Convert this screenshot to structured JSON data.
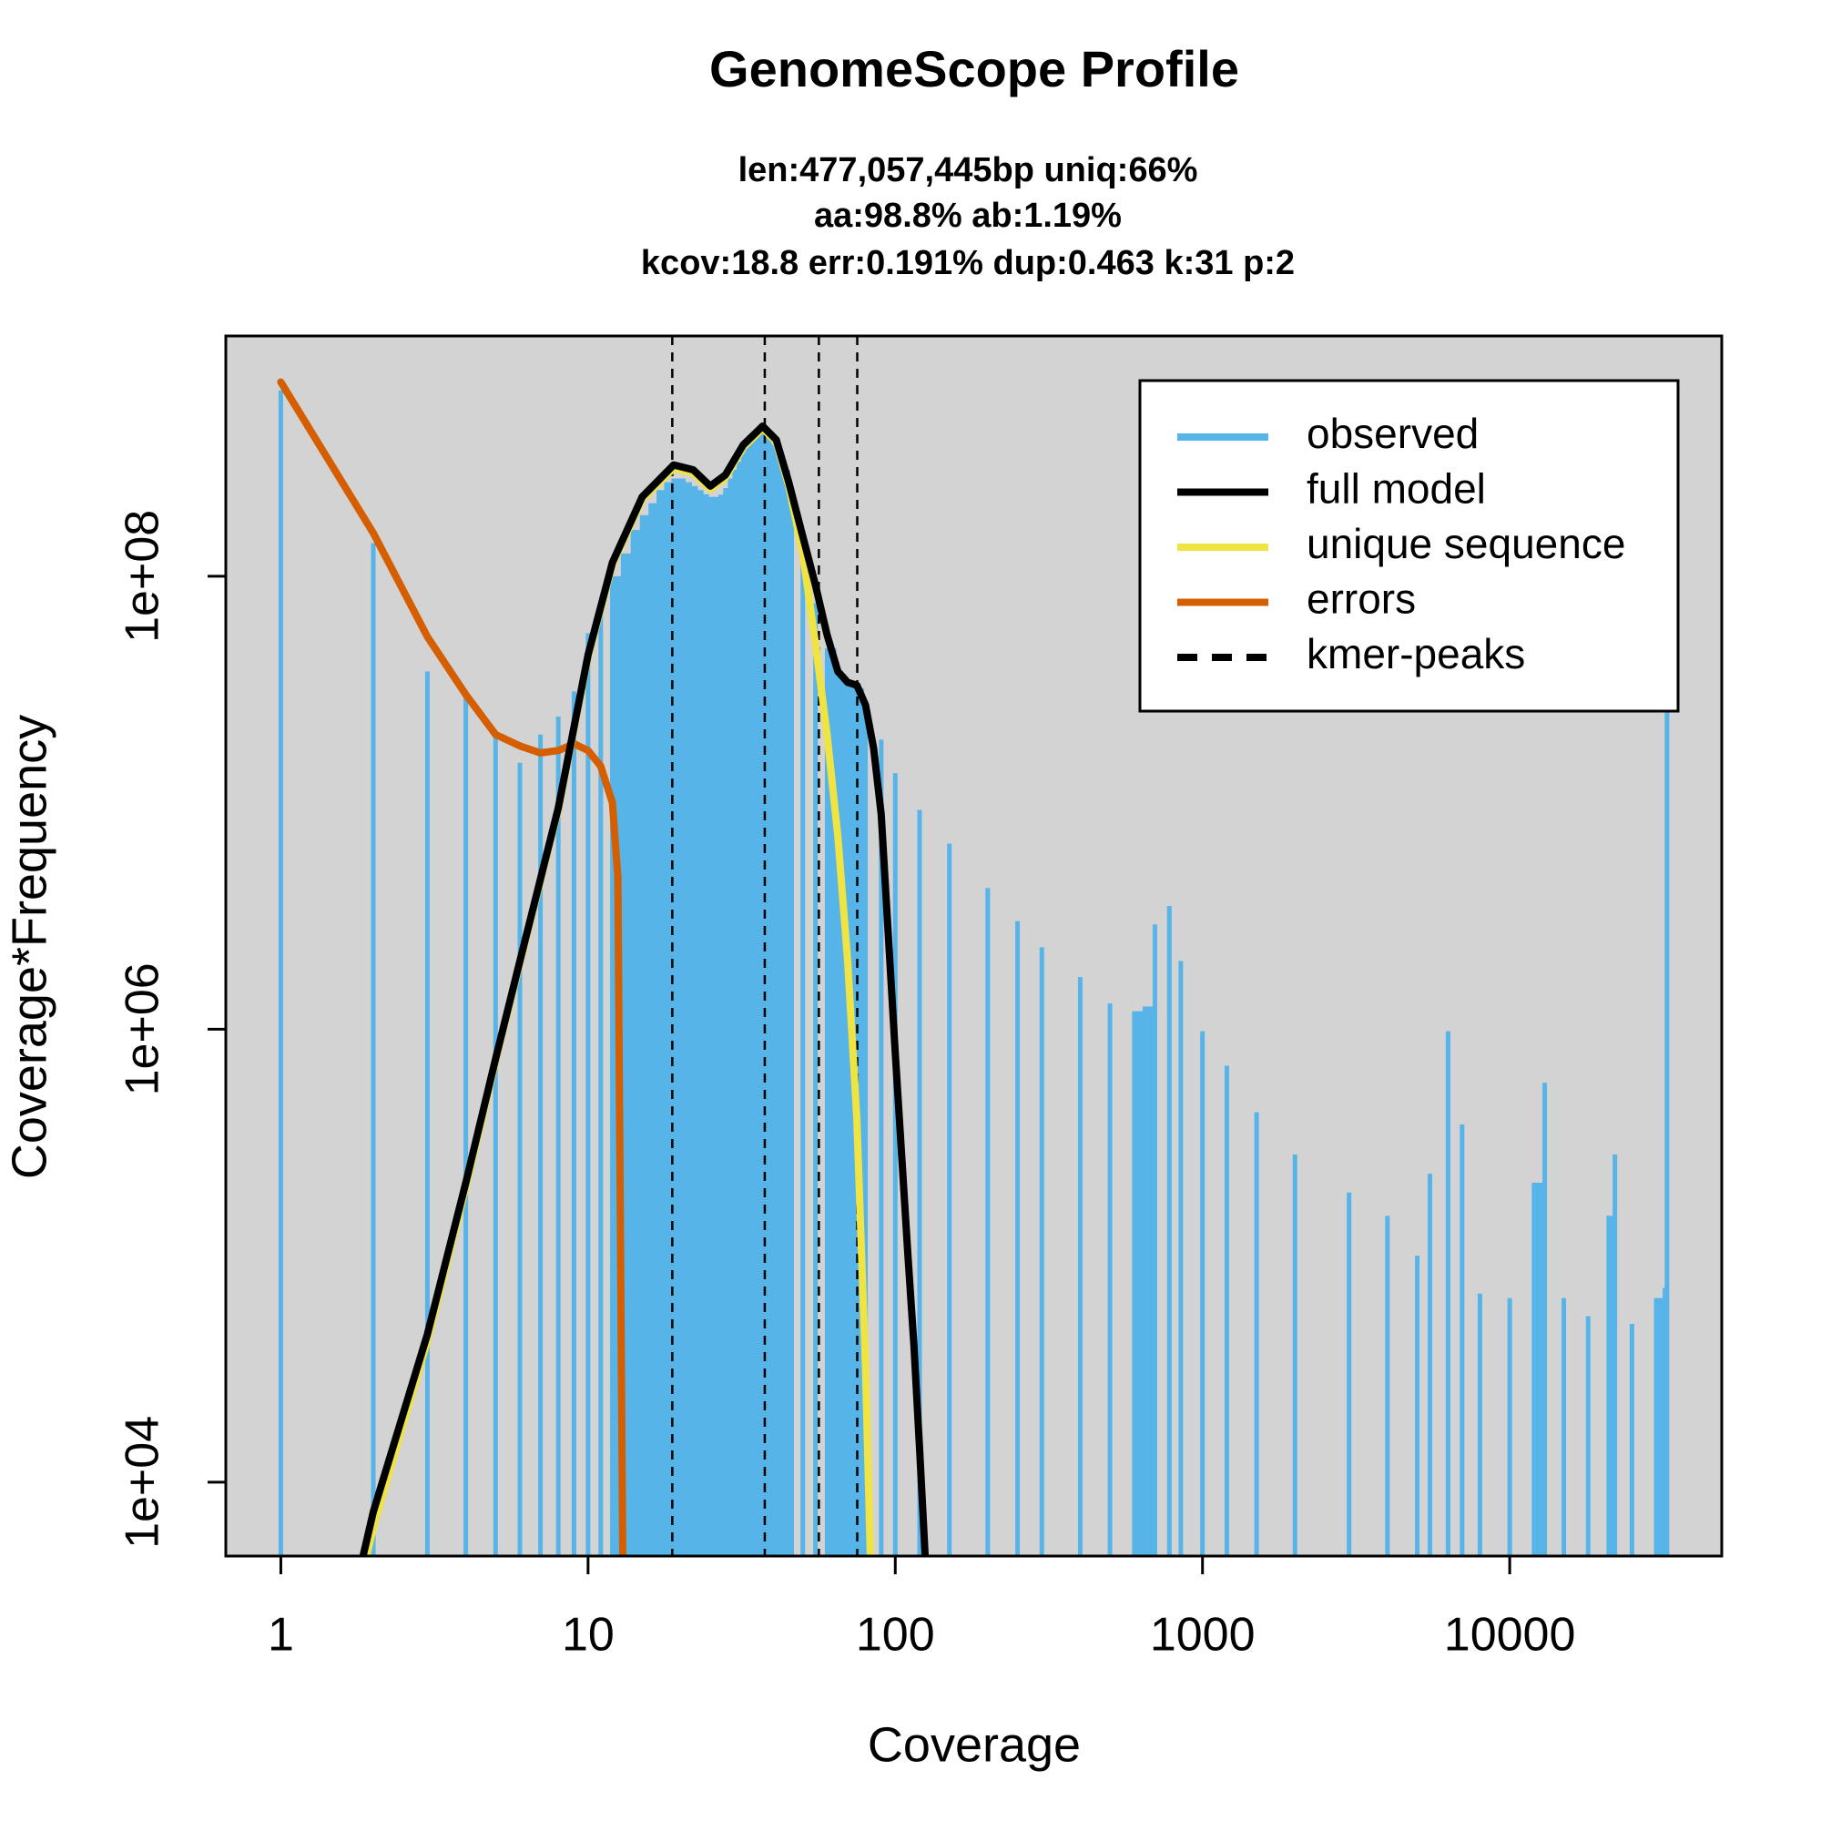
{
  "chart_data": {
    "type": "line",
    "title": "GenomeScope Profile",
    "subtitle": [
      "len:477,057,445bp uniq:66%",
      "aa:98.8% ab:1.19%",
      "kcov:18.8 err:0.191%  dup:0.463  k:31 p:2"
    ],
    "x_label": "Coverage",
    "y_label": "Coverage*Frequency",
    "xlog": true,
    "ylog": true,
    "xlim": [
      0.662,
      49000
    ],
    "ylim": [
      4720,
      1150000000
    ],
    "xticks": [
      1,
      10,
      100,
      1000,
      10000
    ],
    "yticks": [
      {
        "value": 10000,
        "label": "1e+04"
      },
      {
        "value": 1000000,
        "label": "1e+06"
      },
      {
        "value": 100000000,
        "label": "1e+08"
      }
    ],
    "background": "#d3d3d3",
    "legend": "top-right",
    "series": [
      {
        "name": "observed",
        "color": "#56B4E9",
        "style": "h",
        "x": [
          1,
          2,
          3,
          4,
          5,
          6,
          7,
          8,
          9,
          10,
          11,
          12,
          13,
          14,
          15,
          16,
          17,
          18,
          19,
          20,
          21,
          22,
          23,
          24,
          25,
          26,
          27,
          28,
          29,
          30,
          31,
          32,
          33,
          34,
          35,
          36,
          37,
          38,
          39,
          40,
          43,
          46,
          50,
          55,
          60,
          65,
          70,
          75,
          80,
          90,
          100,
          120,
          150,
          200,
          250,
          300,
          400,
          500,
          600,
          650,
          700,
          780,
          850,
          1000,
          1200,
          1500,
          2000,
          3000,
          4000,
          5000,
          5500,
          6300,
          7000,
          8000,
          10000,
          12000,
          13000,
          15000,
          18000,
          21000,
          22000,
          25000,
          30000,
          32000,
          32500
        ],
        "values": [
          660000000,
          140000000,
          38000000,
          29000000,
          20000000,
          15000000,
          20000000,
          24000000,
          31000000,
          56000000,
          71000000,
          100000000,
          126000000,
          160000000,
          186000000,
          210000000,
          240000000,
          260000000,
          270000000,
          270000000,
          260000000,
          250000000,
          240000000,
          230000000,
          224000000,
          224000000,
          229000000,
          245000000,
          270000000,
          295000000,
          320000000,
          350000000,
          380000000,
          410000000,
          430000000,
          440000000,
          440000000,
          430000000,
          410000000,
          380000000,
          295000000,
          210000000,
          130000000,
          76000000,
          48000000,
          37000000,
          33000000,
          32000000,
          26000000,
          19000000,
          13500000,
          9300000,
          6600000,
          4200000,
          3000000,
          2300000,
          1700000,
          1300000,
          1200000,
          1260000,
          2900000,
          3500000,
          2000000,
          980000,
          690000,
          430000,
          280000,
          190000,
          150000,
          100000,
          230000,
          980000,
          380000,
          68000,
          65000,
          210000,
          580000,
          65000,
          54000,
          150000,
          280000,
          50000,
          65000,
          72000,
          25000000
        ]
      },
      {
        "name": "full model",
        "color": "#000000",
        "style": "line",
        "x": [
          1.8,
          2,
          2.5,
          3,
          4,
          5,
          6,
          8,
          10,
          12,
          15,
          19,
          22,
          25,
          28,
          32,
          37,
          41,
          45,
          50,
          55,
          60,
          65,
          70,
          75,
          80,
          85,
          90,
          100,
          110,
          115,
          120,
          125
        ],
        "values": [
          4000,
          7400,
          20000,
          45000,
          210000,
          740000,
          2000000,
          9500000,
          45000000,
          115000000,
          224000000,
          310000000,
          295000000,
          250000000,
          280000000,
          380000000,
          460000000,
          400000000,
          260000000,
          150000000,
          91000000,
          55000000,
          38000000,
          34000000,
          33000000,
          27000000,
          17400000,
          8900000,
          780000,
          100000,
          40000,
          14000,
          4800
        ]
      },
      {
        "name": "unique sequence",
        "color": "#F0E442",
        "style": "line",
        "x": [
          1.85,
          2,
          2.5,
          3,
          4,
          5,
          6,
          8,
          10,
          12,
          15,
          19,
          22,
          25,
          28,
          32,
          37,
          41,
          45,
          50,
          55,
          60,
          65,
          70,
          75,
          80,
          83
        ],
        "values": [
          4000,
          6300,
          18000,
          42000,
          200000,
          720000,
          1950000,
          9300000,
          44000000,
          112000000,
          218000000,
          300000000,
          285000000,
          242000000,
          272000000,
          370000000,
          450000000,
          390000000,
          250000000,
          126000000,
          50000000,
          20000000,
          7100000,
          2000000,
          400000,
          32000,
          4500
        ]
      },
      {
        "name": "errors",
        "color": "#D55E00",
        "style": "line",
        "x": [
          1,
          2,
          3,
          4,
          5,
          6,
          7,
          8,
          9,
          10,
          11,
          12,
          12.5,
          13
        ],
        "values": [
          720000000,
          155000000,
          54000000,
          30000000,
          20000000,
          17800000,
          16600000,
          17000000,
          18200000,
          17000000,
          14500000,
          10000000,
          4700000,
          3000
        ]
      }
    ],
    "kmer_peaks": {
      "name": "kmer-peaks",
      "color": "#000000",
      "values": [
        18.8,
        37.6,
        56.4,
        75.2
      ]
    }
  }
}
